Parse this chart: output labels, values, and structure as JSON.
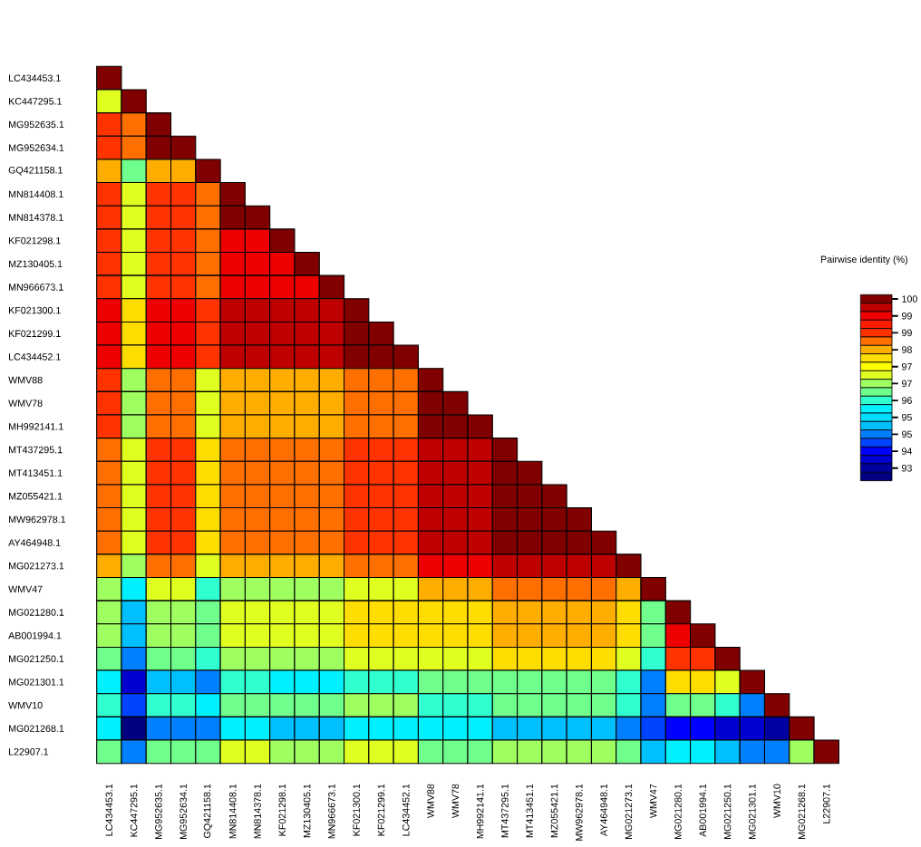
{
  "chart_data": {
    "type": "heatmap",
    "clabel": "Pairwise identity (%)",
    "categories": [
      "LC434453.1",
      "KC447295.1",
      "MG952635.1",
      "MG952634.1",
      "GQ421158.1",
      "MN814408.1",
      "MN814378.1",
      "KF021298.1",
      "MZ130405.1",
      "MN966673.1",
      "KF021300.1",
      "KF021299.1",
      "LC434452.1",
      "WMV88",
      "WMV78",
      "MH992141.1",
      "MT437295.1",
      "MT413451.1",
      "MZ055421.1",
      "MW962978.1",
      "AY464948.1",
      "MG021273.1",
      "WMV47",
      "MG021280.1",
      "AB001994.1",
      "MG021250.1",
      "MG021301.1",
      "WMV10",
      "MG021268.1",
      "L22907.1"
    ],
    "y_categories": [
      "LC434453.1",
      "KC447295.1",
      "MG952635.1",
      "MG952634.1",
      "GQ421158.1",
      "MN814408.1",
      "MN814378.1",
      "KF021298.1",
      "MZ130405.1",
      "MN966673.1",
      "KF021300.1",
      "KF021299.1",
      "LC434452.1",
      "WMV88",
      "WMV78",
      "MH992141.1",
      "MT437295.1",
      "MT413451.1",
      "MZ055421.1",
      "MW962978.1",
      "AY464948.1",
      "MG021273.1",
      "WMV47",
      "MG021280.1",
      "AB001994.1",
      "MG021250.1",
      "MG021301.1",
      "WMV10",
      "MG021268.1",
      "L22907.1"
    ],
    "cells": [
      [
        100,
        null,
        null,
        null,
        null,
        null,
        null,
        null,
        null,
        null,
        null,
        null,
        null,
        null,
        null,
        null,
        null,
        null,
        null,
        null,
        null,
        null,
        null,
        null,
        null,
        null,
        null,
        null,
        null,
        null
      ],
      [
        97.0,
        100,
        null,
        null,
        null,
        null,
        null,
        null,
        null,
        null,
        null,
        null,
        null,
        null,
        null,
        null,
        null,
        null,
        null,
        null,
        null,
        null,
        null,
        null,
        null,
        null,
        null,
        null,
        null,
        null
      ],
      [
        98.7,
        98.3,
        100,
        null,
        null,
        null,
        null,
        null,
        null,
        null,
        null,
        null,
        null,
        null,
        null,
        null,
        null,
        null,
        null,
        null,
        null,
        null,
        null,
        null,
        null,
        null,
        null,
        null,
        null,
        null
      ],
      [
        98.7,
        98.3,
        100,
        100,
        null,
        null,
        null,
        null,
        null,
        null,
        null,
        null,
        null,
        null,
        null,
        null,
        null,
        null,
        null,
        null,
        null,
        null,
        null,
        null,
        null,
        null,
        null,
        null,
        null,
        null
      ],
      [
        98.0,
        96.3,
        98.0,
        98.0,
        100,
        null,
        null,
        null,
        null,
        null,
        null,
        null,
        null,
        null,
        null,
        null,
        null,
        null,
        null,
        null,
        null,
        null,
        null,
        null,
        null,
        null,
        null,
        null,
        null,
        null
      ],
      [
        98.7,
        97.0,
        98.7,
        98.7,
        98.3,
        100,
        null,
        null,
        null,
        null,
        null,
        null,
        null,
        null,
        null,
        null,
        null,
        null,
        null,
        null,
        null,
        null,
        null,
        null,
        null,
        null,
        null,
        null,
        null,
        null
      ],
      [
        98.7,
        97.0,
        98.7,
        98.7,
        98.3,
        100,
        100,
        null,
        null,
        null,
        null,
        null,
        null,
        null,
        null,
        null,
        null,
        null,
        null,
        null,
        null,
        null,
        null,
        null,
        null,
        null,
        null,
        null,
        null,
        null
      ],
      [
        98.7,
        97.0,
        98.7,
        98.7,
        98.3,
        99.3,
        99.3,
        100,
        null,
        null,
        null,
        null,
        null,
        null,
        null,
        null,
        null,
        null,
        null,
        null,
        null,
        null,
        null,
        null,
        null,
        null,
        null,
        null,
        null,
        null
      ],
      [
        98.7,
        97.0,
        98.7,
        98.7,
        98.3,
        99.3,
        99.3,
        99.3,
        100,
        null,
        null,
        null,
        null,
        null,
        null,
        null,
        null,
        null,
        null,
        null,
        null,
        null,
        null,
        null,
        null,
        null,
        null,
        null,
        null,
        null
      ],
      [
        98.7,
        97.0,
        98.7,
        98.7,
        98.3,
        99.3,
        99.3,
        99.3,
        99.3,
        100,
        null,
        null,
        null,
        null,
        null,
        null,
        null,
        null,
        null,
        null,
        null,
        null,
        null,
        null,
        null,
        null,
        null,
        null,
        null,
        null
      ],
      [
        99.3,
        97.7,
        99.3,
        99.3,
        98.7,
        99.7,
        99.7,
        99.7,
        99.7,
        99.7,
        100,
        null,
        null,
        null,
        null,
        null,
        null,
        null,
        null,
        null,
        null,
        null,
        null,
        null,
        null,
        null,
        null,
        null,
        null,
        null
      ],
      [
        99.3,
        97.7,
        99.3,
        99.3,
        98.7,
        99.7,
        99.7,
        99.7,
        99.7,
        99.7,
        100,
        100,
        null,
        null,
        null,
        null,
        null,
        null,
        null,
        null,
        null,
        null,
        null,
        null,
        null,
        null,
        null,
        null,
        null,
        null
      ],
      [
        99.3,
        97.7,
        99.3,
        99.3,
        98.7,
        99.7,
        99.7,
        99.7,
        99.7,
        99.7,
        100,
        100,
        100,
        null,
        null,
        null,
        null,
        null,
        null,
        null,
        null,
        null,
        null,
        null,
        null,
        null,
        null,
        null,
        null,
        null
      ],
      [
        98.7,
        96.7,
        98.3,
        98.3,
        97.0,
        98.0,
        98.0,
        98.0,
        98.0,
        98.0,
        98.3,
        98.3,
        98.3,
        100,
        null,
        null,
        null,
        null,
        null,
        null,
        null,
        null,
        null,
        null,
        null,
        null,
        null,
        null,
        null,
        null
      ],
      [
        98.7,
        96.7,
        98.3,
        98.3,
        97.0,
        98.0,
        98.0,
        98.0,
        98.0,
        98.0,
        98.3,
        98.3,
        98.3,
        100,
        100,
        null,
        null,
        null,
        null,
        null,
        null,
        null,
        null,
        null,
        null,
        null,
        null,
        null,
        null,
        null
      ],
      [
        98.7,
        96.7,
        98.3,
        98.3,
        97.0,
        98.0,
        98.0,
        98.0,
        98.0,
        98.0,
        98.3,
        98.3,
        98.3,
        100,
        100,
        100,
        null,
        null,
        null,
        null,
        null,
        null,
        null,
        null,
        null,
        null,
        null,
        null,
        null,
        null
      ],
      [
        98.3,
        97.0,
        98.7,
        98.7,
        97.7,
        98.3,
        98.3,
        98.3,
        98.3,
        98.3,
        98.7,
        98.7,
        98.7,
        99.7,
        99.7,
        99.7,
        100,
        null,
        null,
        null,
        null,
        null,
        null,
        null,
        null,
        null,
        null,
        null,
        null,
        null
      ],
      [
        98.3,
        97.0,
        98.7,
        98.7,
        97.7,
        98.3,
        98.3,
        98.3,
        98.3,
        98.3,
        98.7,
        98.7,
        98.7,
        99.7,
        99.7,
        99.7,
        100,
        100,
        null,
        null,
        null,
        null,
        null,
        null,
        null,
        null,
        null,
        null,
        null,
        null
      ],
      [
        98.3,
        97.0,
        98.7,
        98.7,
        97.7,
        98.3,
        98.3,
        98.3,
        98.3,
        98.3,
        98.7,
        98.7,
        98.7,
        99.7,
        99.7,
        99.7,
        100,
        100,
        100,
        null,
        null,
        null,
        null,
        null,
        null,
        null,
        null,
        null,
        null,
        null
      ],
      [
        98.3,
        97.0,
        98.7,
        98.7,
        97.7,
        98.3,
        98.3,
        98.3,
        98.3,
        98.3,
        98.7,
        98.7,
        98.7,
        99.7,
        99.7,
        99.7,
        100,
        100,
        100,
        100,
        null,
        null,
        null,
        null,
        null,
        null,
        null,
        null,
        null,
        null
      ],
      [
        98.3,
        97.0,
        98.7,
        98.7,
        97.7,
        98.3,
        98.3,
        98.3,
        98.3,
        98.3,
        98.7,
        98.7,
        98.7,
        99.7,
        99.7,
        99.7,
        100,
        100,
        100,
        100,
        100,
        null,
        null,
        null,
        null,
        null,
        null,
        null,
        null,
        null
      ],
      [
        98.0,
        96.7,
        98.3,
        98.3,
        97.0,
        98.0,
        98.0,
        98.0,
        98.0,
        98.0,
        98.3,
        98.3,
        98.3,
        99.3,
        99.3,
        99.3,
        99.7,
        99.7,
        99.7,
        99.7,
        99.7,
        100,
        null,
        null,
        null,
        null,
        null,
        null,
        null,
        null
      ],
      [
        96.7,
        95.6,
        97.0,
        97.0,
        96.0,
        96.7,
        96.7,
        96.7,
        96.7,
        96.7,
        97.0,
        97.0,
        97.0,
        98.0,
        98.0,
        98.0,
        98.3,
        98.3,
        98.3,
        98.3,
        98.3,
        98.0,
        100,
        null,
        null,
        null,
        null,
        null,
        null,
        null
      ],
      [
        96.7,
        95.0,
        96.7,
        96.7,
        96.3,
        97.0,
        97.0,
        97.0,
        97.0,
        97.0,
        97.7,
        97.7,
        97.7,
        97.7,
        97.7,
        97.7,
        98.0,
        98.0,
        98.0,
        98.0,
        98.0,
        97.7,
        96.3,
        100,
        null,
        null,
        null,
        null,
        null,
        null
      ],
      [
        96.7,
        95.0,
        96.7,
        96.7,
        96.3,
        97.0,
        97.0,
        97.0,
        97.0,
        97.0,
        97.7,
        97.7,
        97.7,
        97.7,
        97.7,
        97.7,
        98.0,
        98.0,
        98.0,
        98.0,
        98.0,
        97.7,
        96.3,
        99.3,
        100,
        null,
        null,
        null,
        null,
        null
      ],
      [
        96.3,
        94.6,
        96.3,
        96.3,
        96.0,
        96.7,
        96.7,
        96.7,
        96.7,
        96.7,
        97.0,
        97.0,
        97.0,
        97.0,
        97.0,
        97.0,
        97.7,
        97.7,
        97.7,
        97.7,
        97.7,
        97.0,
        96.0,
        98.7,
        98.7,
        100,
        null,
        null,
        null,
        null
      ],
      [
        95.6,
        93.6,
        95.0,
        95.0,
        94.6,
        96.0,
        96.0,
        95.6,
        95.6,
        95.6,
        96.0,
        96.0,
        96.0,
        96.3,
        96.3,
        96.3,
        96.3,
        96.3,
        96.3,
        96.3,
        96.3,
        96.0,
        94.6,
        97.7,
        97.7,
        97.0,
        100,
        null,
        null,
        null
      ],
      [
        96.0,
        94.3,
        96.0,
        96.0,
        95.6,
        96.3,
        96.3,
        96.3,
        96.3,
        96.3,
        96.7,
        96.7,
        96.7,
        96.0,
        96.0,
        96.0,
        96.3,
        96.3,
        96.3,
        96.3,
        96.3,
        96.0,
        94.6,
        96.3,
        96.3,
        96.0,
        94.6,
        100,
        null,
        null
      ],
      [
        95.6,
        93.0,
        94.6,
        94.6,
        94.6,
        95.6,
        95.6,
        95.0,
        95.0,
        95.0,
        95.6,
        95.6,
        95.6,
        95.6,
        95.6,
        95.6,
        95.0,
        95.0,
        95.0,
        95.0,
        95.0,
        94.6,
        94.3,
        94.0,
        94.0,
        93.6,
        93.6,
        93.3,
        100,
        null
      ],
      [
        96.3,
        94.6,
        96.3,
        96.3,
        96.3,
        97.0,
        97.0,
        96.7,
        96.7,
        96.7,
        97.0,
        97.0,
        97.0,
        96.3,
        96.3,
        96.3,
        96.7,
        96.7,
        96.7,
        96.7,
        96.7,
        96.3,
        95.0,
        95.6,
        95.6,
        95.0,
        94.6,
        94.6,
        96.7,
        100
      ]
    ],
    "clim": [
      92.8,
      100.17
    ],
    "cticks": [
      {
        "value": 100,
        "label": "100"
      },
      {
        "value": 99.33,
        "label": "99"
      },
      {
        "value": 98.66,
        "label": "99"
      },
      {
        "value": 97.99,
        "label": "98"
      },
      {
        "value": 97.32,
        "label": "97"
      },
      {
        "value": 96.65,
        "label": "97"
      },
      {
        "value": 95.98,
        "label": "96"
      },
      {
        "value": 95.31,
        "label": "95"
      },
      {
        "value": 94.64,
        "label": "95"
      },
      {
        "value": 93.97,
        "label": "94"
      },
      {
        "value": 93.3,
        "label": "93"
      }
    ]
  }
}
